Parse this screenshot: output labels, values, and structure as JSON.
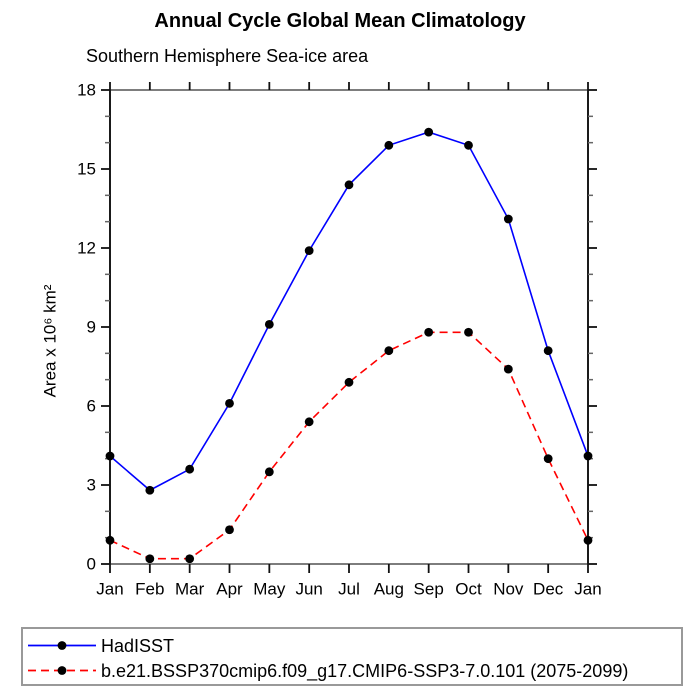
{
  "chart_data": {
    "type": "line",
    "title": "Annual Cycle Global Mean Climatology",
    "subtitle": "Southern Hemisphere Sea-ice area",
    "ylabel": "Area x 10⁶ km²",
    "xlabel": "",
    "categories": [
      "Jan",
      "Feb",
      "Mar",
      "Apr",
      "May",
      "Jun",
      "Jul",
      "Aug",
      "Sep",
      "Oct",
      "Nov",
      "Dec",
      "Jan"
    ],
    "ylim": [
      0,
      18
    ],
    "ytick_major": [
      0,
      3,
      6,
      9,
      12,
      15,
      18
    ],
    "ytick_minor_step": 1,
    "grid": false,
    "legend_position": "bottom-box",
    "marker": {
      "shape": "circle",
      "color": "#000000",
      "radius": 4.4
    },
    "axis_colors": {
      "horizontal_frame": "#7d7d7d",
      "vertical_frame": "#1a1a1a",
      "major_tick": "#111111",
      "minor_tick": "#666666"
    },
    "series": [
      {
        "name": "HadISST",
        "color": "#0000ff",
        "style": "solid",
        "dash": "",
        "values": [
          4.1,
          2.8,
          3.6,
          6.1,
          9.1,
          11.9,
          14.4,
          15.9,
          16.4,
          15.9,
          13.1,
          8.1,
          4.1
        ]
      },
      {
        "name": "b.e21.BSSP370cmip6.f09_g17.CMIP6-SSP3-7.0.101 (2075-2099)",
        "color": "#ff0000",
        "style": "dashed",
        "dash": "8 5",
        "values": [
          0.9,
          0.2,
          0.2,
          1.3,
          3.5,
          5.4,
          6.9,
          8.1,
          8.8,
          8.8,
          7.4,
          4.0,
          0.9
        ]
      }
    ]
  }
}
